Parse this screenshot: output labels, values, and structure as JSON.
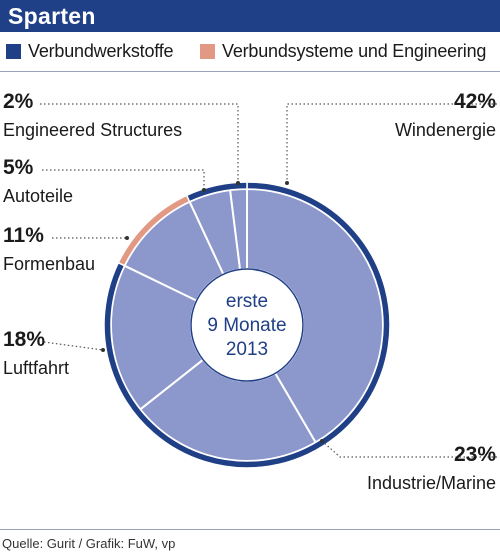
{
  "header": {
    "title": "Sparten"
  },
  "colors": {
    "header_bg": "#1f3f86",
    "ring_outer": "#1f3f86",
    "slice_fill": "#8c97cc",
    "accent_segment": "#e29983",
    "slice_border": "#ffffff",
    "text": "#1a1a1a"
  },
  "legend": [
    {
      "label": "Verbundwerkstoffe",
      "color": "#1f3f86"
    },
    {
      "label": "Verbundsysteme und Engineering",
      "color": "#e29983"
    }
  ],
  "center_label": [
    "erste",
    "9 Monate",
    "2013"
  ],
  "source": "Quelle: Gurit / Grafik: FuW, vp",
  "chart_data": {
    "type": "pie",
    "style": "donut",
    "slices": [
      {
        "label": "Windenergie",
        "value": 42,
        "value_label": "42%",
        "group": "Verbundwerkstoffe"
      },
      {
        "label": "Industrie/Marine",
        "value": 23,
        "value_label": "23%",
        "group": "Verbundwerkstoffe"
      },
      {
        "label": "Luftfahrt",
        "value": 18,
        "value_label": "18%",
        "group": "Verbundwerkstoffe"
      },
      {
        "label": "Formenbau",
        "value": 11,
        "value_label": "11%",
        "group": "Verbundsysteme und Engineering"
      },
      {
        "label": "Autoteile",
        "value": 5,
        "value_label": "5%",
        "group": "Verbundwerkstoffe"
      },
      {
        "label": "Engineered Structures",
        "value": 2,
        "value_label": "2%",
        "group": "Verbundwerkstoffe"
      }
    ]
  }
}
